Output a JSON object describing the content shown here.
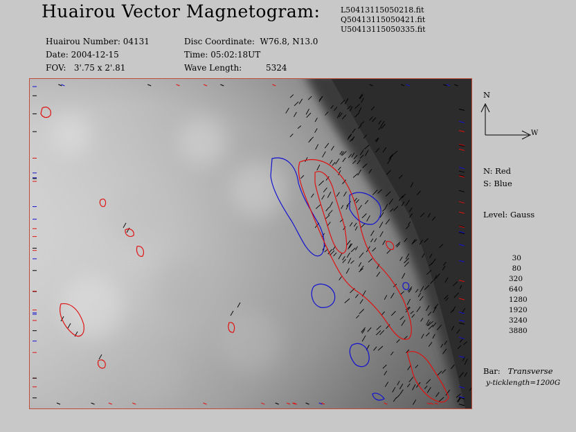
{
  "title": "Huairou Vector Magnetogram:",
  "files": [
    "L50413115050218.fit",
    "Q50413115050421.fit",
    "U50413115050335.fit"
  ],
  "info": {
    "number_label": "Huairou Number:",
    "number_value": "04131",
    "date_label": "Date:",
    "date_value": "2004-12-15",
    "fov_label": "FOV:",
    "fov_value": "3'.75 x 2'.81",
    "disc_label": "Disc Coordinate:",
    "disc_value": "W76.8, N13.0",
    "time_label": "Time:",
    "time_value": "05:02:18UT",
    "wave_label": "Wave Length:",
    "wave_value": "5324"
  },
  "compass": {
    "north": "N",
    "west": "W"
  },
  "polarity": {
    "north": "N: Red",
    "south": "S: Blue"
  },
  "level_label": "Level: Gauss",
  "levels": [
    "30",
    "80",
    "320",
    "640",
    "1280",
    "1920",
    "3240",
    "3880"
  ],
  "bar": {
    "label": "Bar:",
    "value": "Transverse",
    "ticklength": "y-ticklength=1200G"
  },
  "colors": {
    "north": "#e01010",
    "south": "#1010d0",
    "frame": "#c04a3a",
    "background": "#c8c8c8"
  }
}
